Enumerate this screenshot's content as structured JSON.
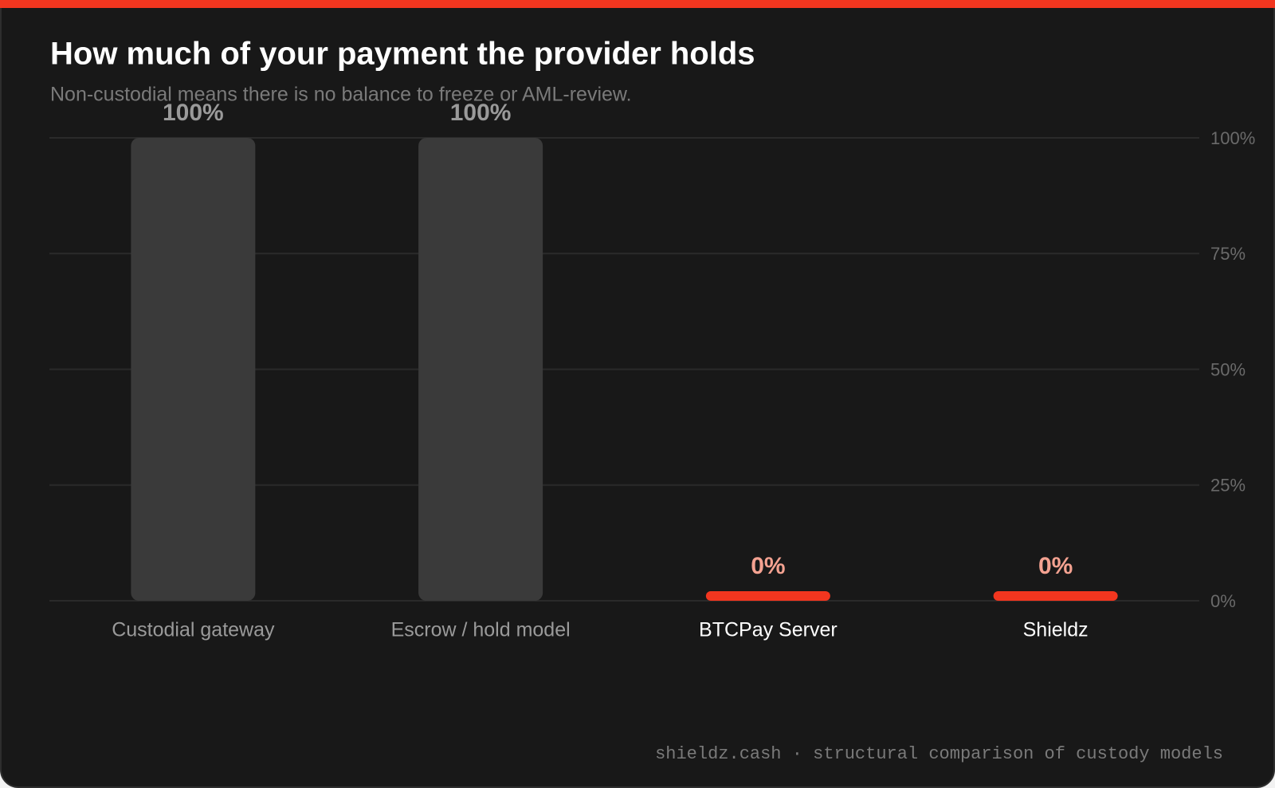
{
  "chart_data": {
    "type": "bar",
    "title": "How much of your payment the provider holds",
    "subtitle": "Non-custodial means there is no balance to freeze or AML-review.",
    "categories": [
      "Custodial gateway",
      "Escrow / hold model",
      "BTCPay Server",
      "Shieldz"
    ],
    "values": [
      100,
      100,
      0,
      0
    ],
    "value_labels": [
      "100%",
      "100%",
      "0%",
      "0%"
    ],
    "colors": [
      "#3a3a3a",
      "#3a3a3a",
      "#f2361f",
      "#f2361f"
    ],
    "ylim": [
      0,
      100
    ],
    "yticks": [
      {
        "value": 0,
        "label": "0%"
      },
      {
        "value": 25,
        "label": "25%"
      },
      {
        "value": 50,
        "label": "50%"
      },
      {
        "value": 75,
        "label": "75%"
      },
      {
        "value": 100,
        "label": "100%"
      }
    ],
    "grid": true,
    "footer": "shieldz.cash · structural comparison of custody models"
  }
}
